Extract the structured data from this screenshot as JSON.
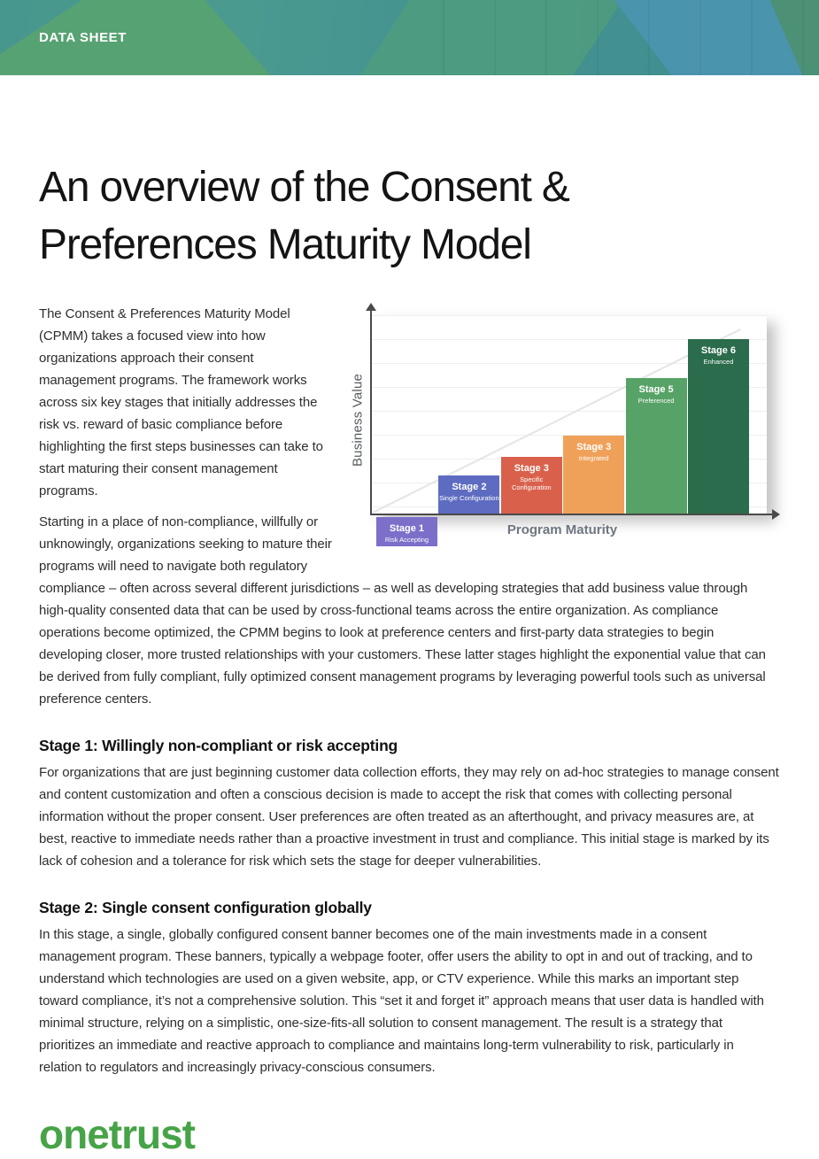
{
  "banner": {
    "label": "DATA SHEET",
    "teal": "#47978e",
    "green": "#57a273",
    "blue": "#4a94ad"
  },
  "title": {
    "line1": "An overview of the Consent &",
    "line2": "Preferences Maturity Model"
  },
  "intro": {
    "p1": "The Consent & Preferences Maturity Model (CPMM) takes a focused view into how organizations approach their consent management programs. The framework works across six key stages that initially addresses the risk vs. reward of basic compliance before highlighting the first steps businesses can take to start maturing their consent management programs.",
    "p2": "Starting in a place of non-compliance, willfully or unknowingly, organizations seeking to mature their programs will need to navigate both regulatory compliance – often across several different jurisdictions – as well as developing strategies that add business value through high-quality consented data that can be used by cross-functional teams across the entire organization. As compliance operations become optimized, the CPMM begins to look at preference centers and first-party data strategies to begin developing closer, more trusted relationships with your customers. These latter stages highlight the exponential value that can be derived from fully compliant, fully optimized consent management programs by leveraging powerful tools such as universal preference centers."
  },
  "chart_data": {
    "type": "bar",
    "title": "",
    "xlabel": "Program Maturity",
    "ylabel": "Business Value",
    "grid": true,
    "trendline": true,
    "note": "Stage 1 bar hangs below the x-axis (negative value); heights are relative business value units",
    "categories": [
      "Stage 1",
      "Stage 2",
      "Stage 3",
      "Stage 3",
      "Stage 5",
      "Stage 6"
    ],
    "bars": [
      {
        "label": "Stage 1",
        "sublabel": "Risk Accepting",
        "color": "#7b6fc9",
        "value": -33
      },
      {
        "label": "Stage 2",
        "sublabel": "Single Configuration",
        "color": "#5d6cc1",
        "value": 45
      },
      {
        "label": "Stage 3",
        "sublabel": "Specific Configuration",
        "color": "#d9614c",
        "value": 66
      },
      {
        "label": "Stage 3",
        "sublabel": "Integrated",
        "color": "#f0a159",
        "value": 90
      },
      {
        "label": "Stage 5",
        "sublabel": "Preferenced",
        "color": "#57a266",
        "value": 155
      },
      {
        "label": "Stage 6",
        "sublabel": "Enhanced",
        "color": "#2a6c4b",
        "value": 199
      }
    ]
  },
  "sections": [
    {
      "heading": "Stage 1: Willingly non-compliant or risk accepting",
      "body": "For organizations that are just beginning customer data collection efforts, they may rely on ad-hoc strategies to manage consent and content customization and often a conscious decision is made to accept the risk that comes with collecting personal information without the proper consent. User preferences are often treated as an afterthought, and privacy measures are, at best, reactive to immediate needs rather than a proactive investment in trust and compliance. This initial stage is marked by its lack of cohesion and a tolerance for risk which sets the stage for deeper vulnerabilities."
    },
    {
      "heading": "Stage 2: Single consent configuration globally",
      "body": "In this stage, a single, globally configured consent banner becomes one of the main investments made in a consent management program. These banners, typically a webpage footer, offer users the ability to opt in and out of tracking, and to understand which technologies are used on a given website, app, or CTV experience. While this marks an important step toward compliance, it’s not a comprehensive solution. This “set it and forget it” approach means that user data is handled with minimal structure, relying on a simplistic, one-size-fits-all solution to consent management. The result is a strategy that prioritizes an immediate and reactive approach to compliance and maintains long-term vulnerability to risk, particularly in relation to regulators and increasingly privacy-conscious consumers."
    }
  ],
  "footer": {
    "logo": "onetrust",
    "logo_color": "#47A347"
  }
}
